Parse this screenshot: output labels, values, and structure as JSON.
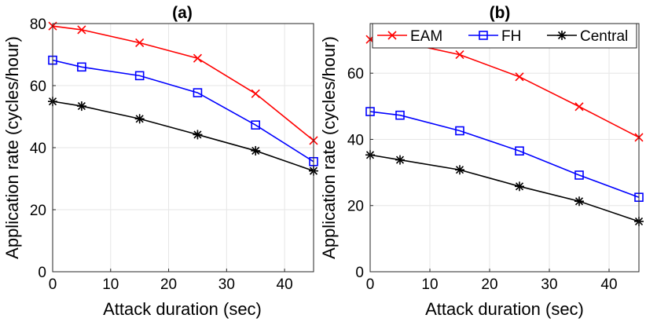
{
  "chart_data": [
    {
      "type": "line",
      "title": "(a)",
      "xlabel": "Attack duration (sec)",
      "ylabel": "Application rate (cycles/hour)",
      "xlim": [
        0,
        45
      ],
      "ylim": [
        0,
        80
      ],
      "xticks": [
        "0",
        "10",
        "20",
        "30",
        "40"
      ],
      "yticks": [
        "0",
        "20",
        "40",
        "60",
        "80"
      ],
      "grid": true,
      "x": [
        0,
        5,
        15,
        25,
        35,
        45
      ],
      "series": [
        {
          "name": "EAM",
          "color": "#ff0000",
          "marker": "x",
          "values": [
            79.2,
            78.0,
            73.8,
            68.8,
            57.4,
            42.3
          ]
        },
        {
          "name": "FH",
          "color": "#0000ff",
          "marker": "square",
          "values": [
            68.2,
            66.0,
            63.2,
            57.7,
            47.3,
            35.5
          ]
        },
        {
          "name": "Central",
          "color": "#000000",
          "marker": "star",
          "values": [
            54.9,
            53.4,
            49.3,
            44.2,
            39.0,
            32.5
          ]
        }
      ]
    },
    {
      "type": "line",
      "title": "(b)",
      "xlabel": "Attack duration (sec)",
      "ylabel": "Application rate (cycles/hour)",
      "xlim": [
        0,
        45
      ],
      "ylim": [
        0,
        75
      ],
      "xticks": [
        "0",
        "10",
        "20",
        "30",
        "40"
      ],
      "yticks": [
        "0",
        "20",
        "40",
        "60"
      ],
      "grid": true,
      "legend": "top",
      "x": [
        0,
        5,
        15,
        25,
        35,
        45
      ],
      "series": [
        {
          "name": "EAM",
          "color": "#ff0000",
          "marker": "x",
          "values": [
            70.2,
            69.5,
            65.6,
            58.9,
            49.9,
            40.6
          ]
        },
        {
          "name": "FH",
          "color": "#0000ff",
          "marker": "square",
          "values": [
            48.4,
            47.3,
            42.6,
            36.5,
            29.2,
            22.5
          ]
        },
        {
          "name": "Central",
          "color": "#000000",
          "marker": "star",
          "values": [
            35.3,
            33.8,
            30.8,
            25.8,
            21.3,
            15.2
          ]
        }
      ]
    }
  ]
}
